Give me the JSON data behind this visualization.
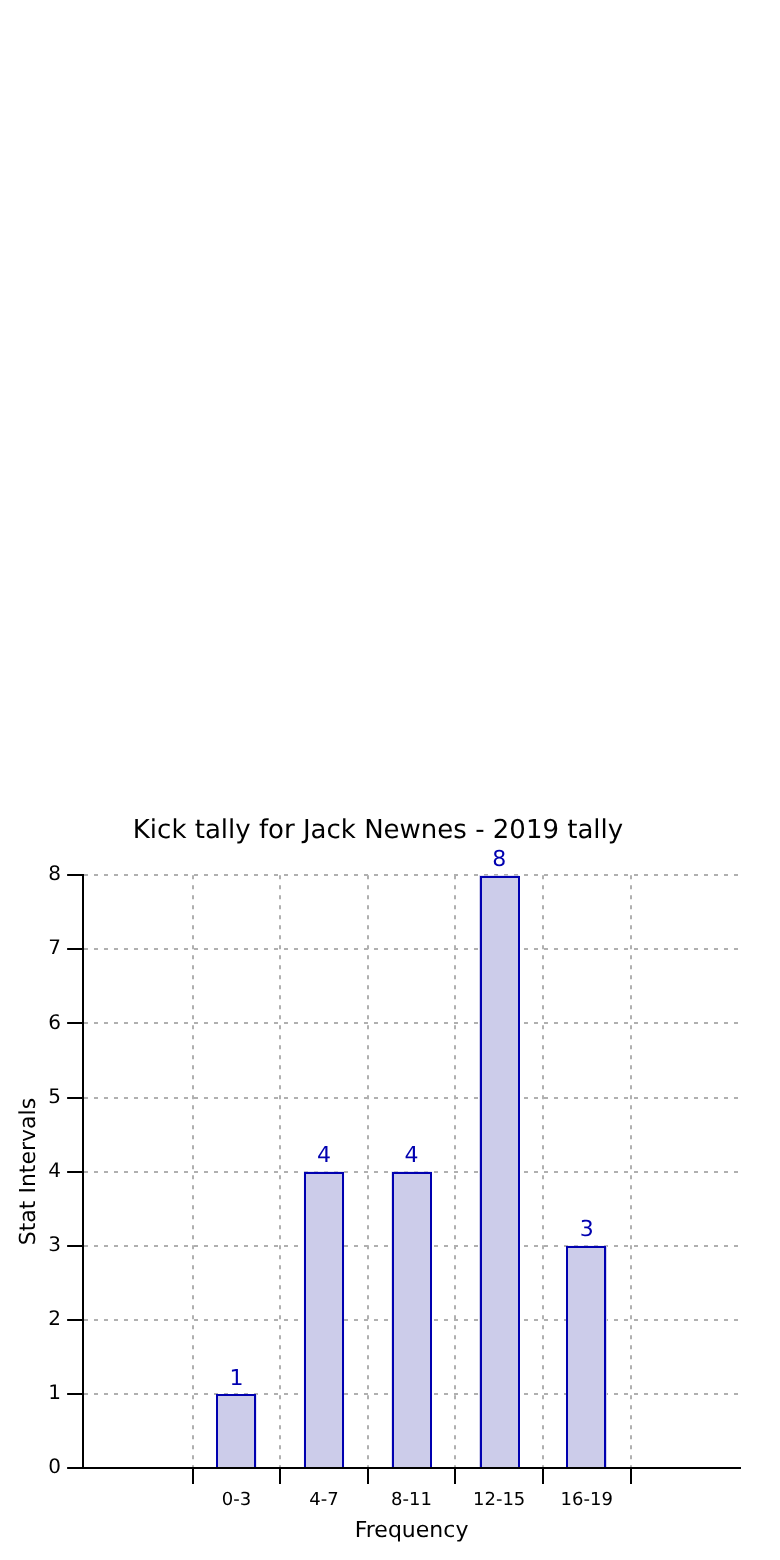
{
  "chart_data": {
    "type": "bar",
    "title": "Kick tally for Jack Newnes - 2019 tally",
    "xlabel": "Frequency",
    "ylabel": "Stat Intervals",
    "categories": [
      "0-3",
      "4-7",
      "8-11",
      "12-15",
      "16-19"
    ],
    "values": [
      1,
      4,
      4,
      8,
      3
    ],
    "color": "#ccccea",
    "ylim": [
      0,
      8
    ],
    "yticks": [
      0,
      1,
      2,
      3,
      4,
      5,
      6,
      7,
      8
    ],
    "grid": true,
    "data_labels": true
  }
}
